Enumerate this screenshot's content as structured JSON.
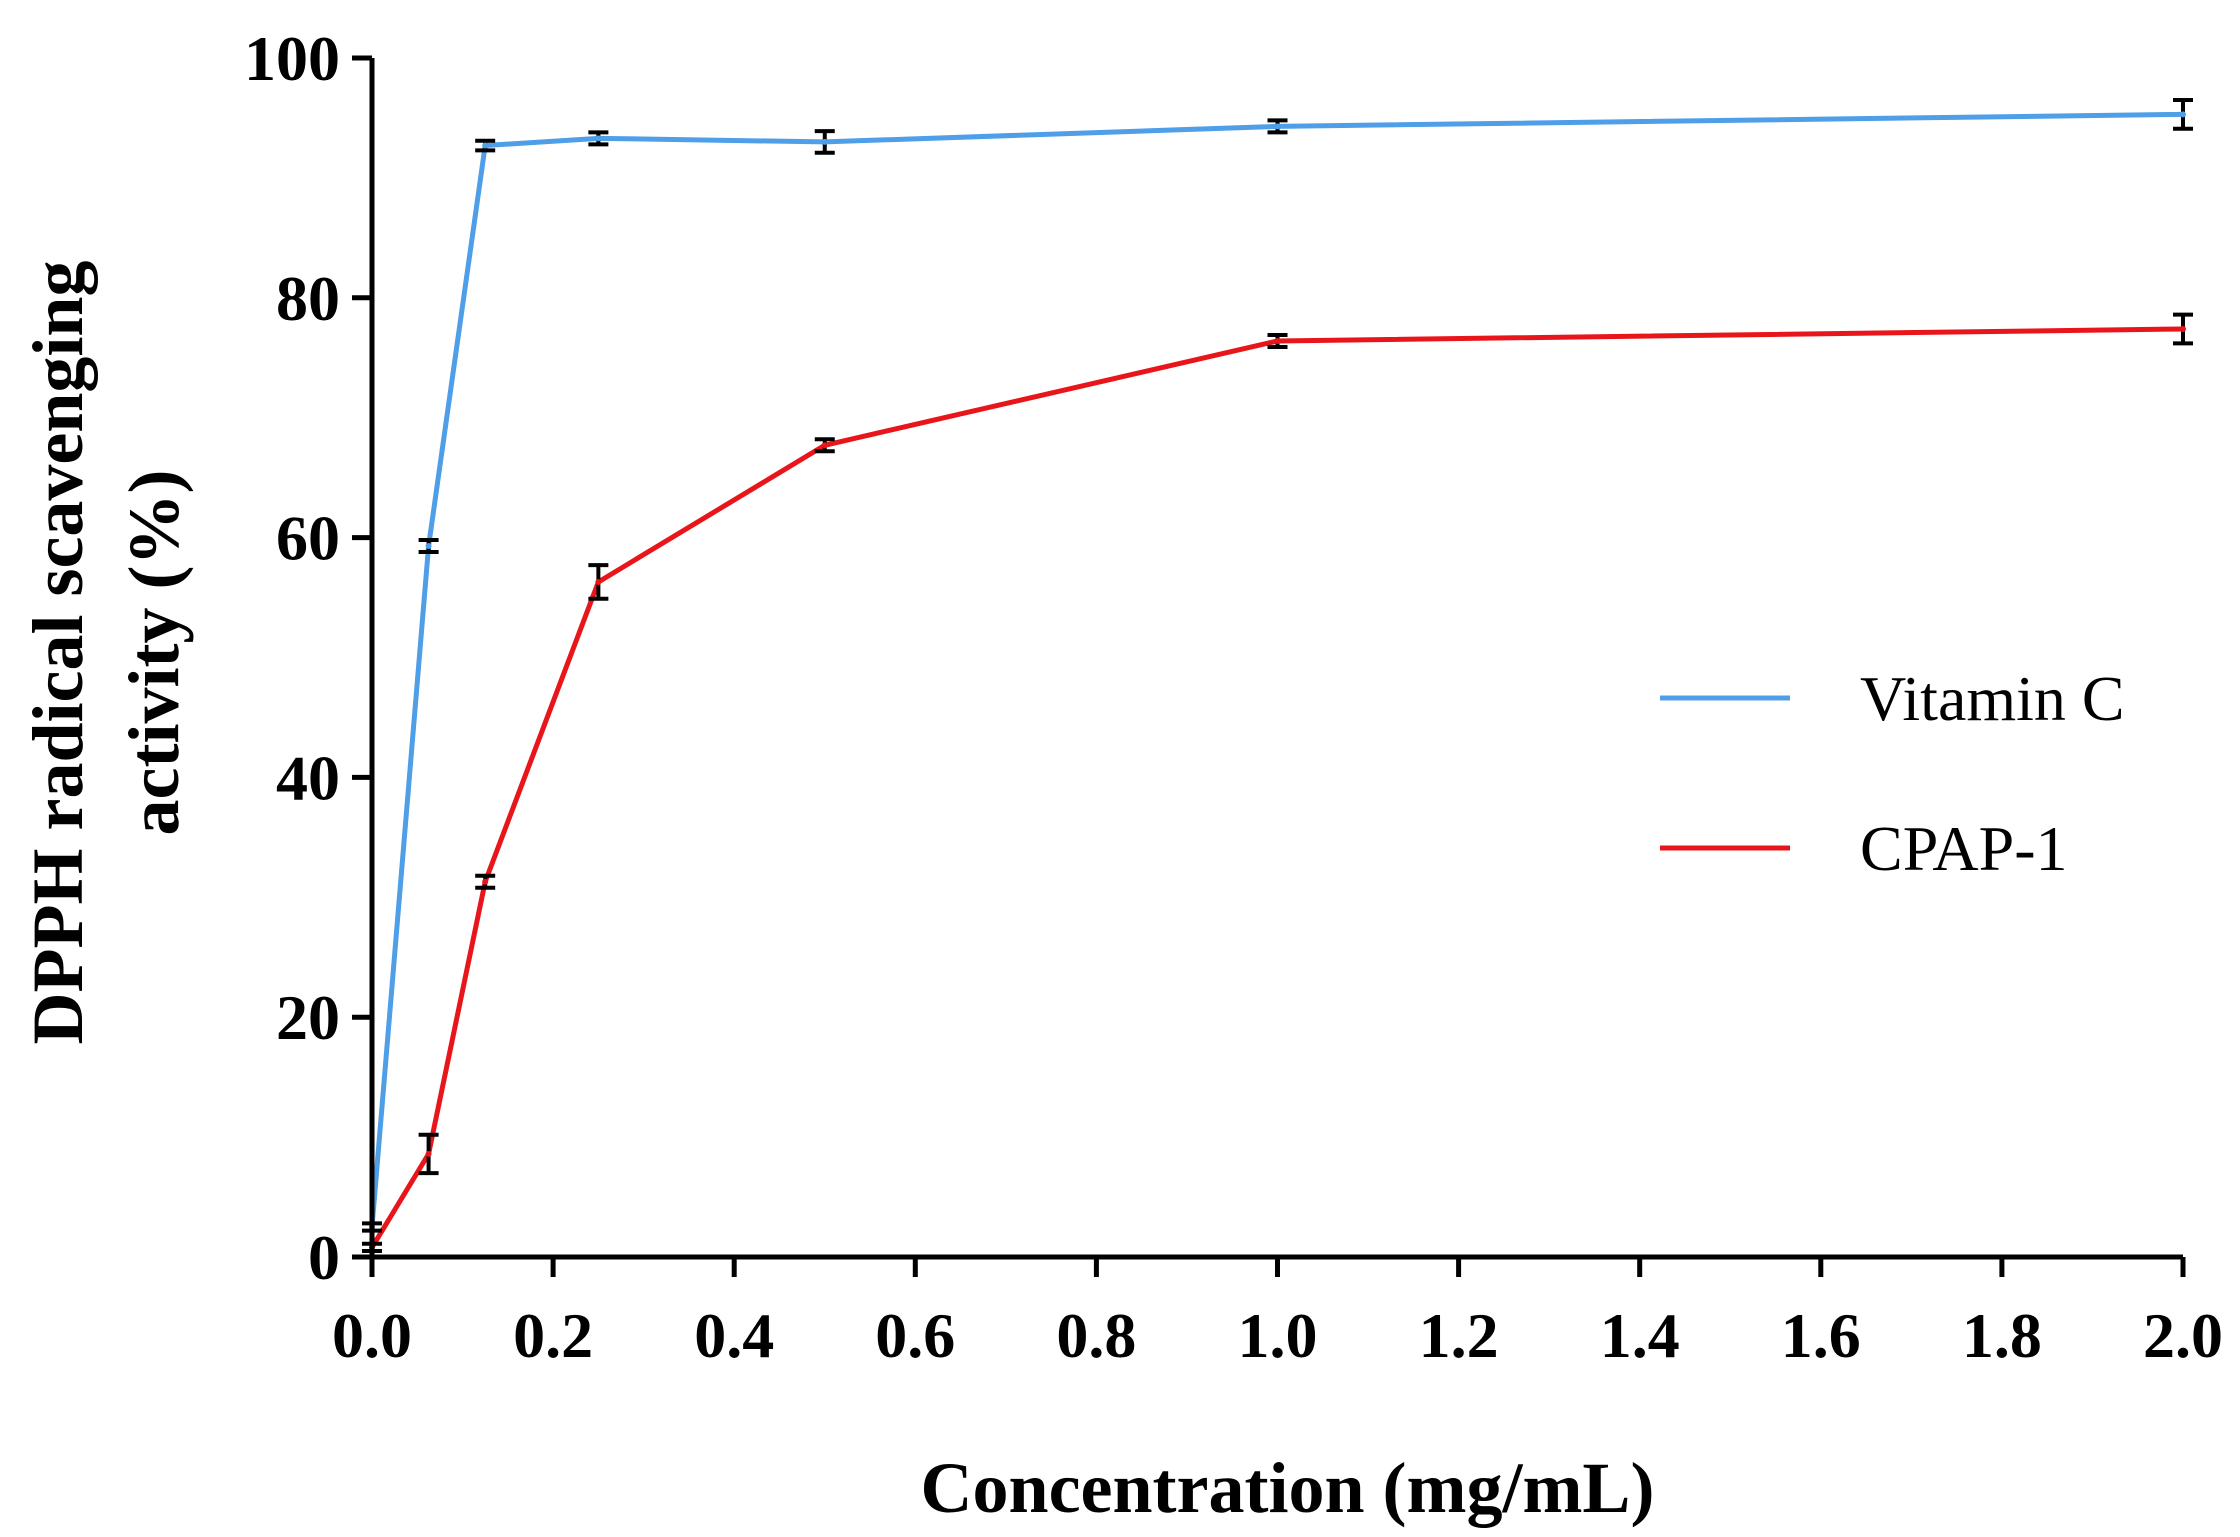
{
  "chart_data": {
    "type": "line",
    "title": "",
    "xlabel": "Concentration (mg/mL)",
    "ylabel_line1": "DPPH radical scavenging",
    "ylabel_line2": "activity (%)",
    "xlim": [
      0,
      2.0
    ],
    "ylim": [
      0,
      100
    ],
    "xticks": [
      0.0,
      0.2,
      0.4,
      0.6,
      0.8,
      1.0,
      1.2,
      1.4,
      1.6,
      1.8,
      2.0
    ],
    "xtick_labels": [
      "0.0",
      "0.2",
      "0.4",
      "0.6",
      "0.8",
      "1.0",
      "1.2",
      "1.4",
      "1.6",
      "1.8",
      "2.0"
    ],
    "yticks": [
      0,
      20,
      40,
      60,
      80,
      100
    ],
    "ytick_labels": [
      "0",
      "20",
      "40",
      "60",
      "80",
      "100"
    ],
    "grid": false,
    "legend_position": "right",
    "series": [
      {
        "name": "Vitamin C",
        "color": "#4f9ee8",
        "x": [
          0,
          0.0625,
          0.125,
          0.25,
          0.5,
          1.0,
          2.0
        ],
        "y": [
          2.5,
          59.3,
          92.7,
          93.3,
          93.0,
          94.3,
          95.3
        ],
        "err": [
          0.3,
          0.5,
          0.4,
          0.5,
          0.9,
          0.5,
          1.2
        ]
      },
      {
        "name": "CPAP-1",
        "color": "#e8161b",
        "x": [
          0,
          0.0625,
          0.125,
          0.25,
          0.5,
          1.0,
          2.0
        ],
        "y": [
          0.8,
          8.6,
          31.3,
          56.3,
          67.7,
          76.4,
          77.4
        ],
        "err": [
          0.3,
          1.6,
          0.5,
          1.4,
          0.5,
          0.5,
          1.2
        ]
      }
    ]
  }
}
